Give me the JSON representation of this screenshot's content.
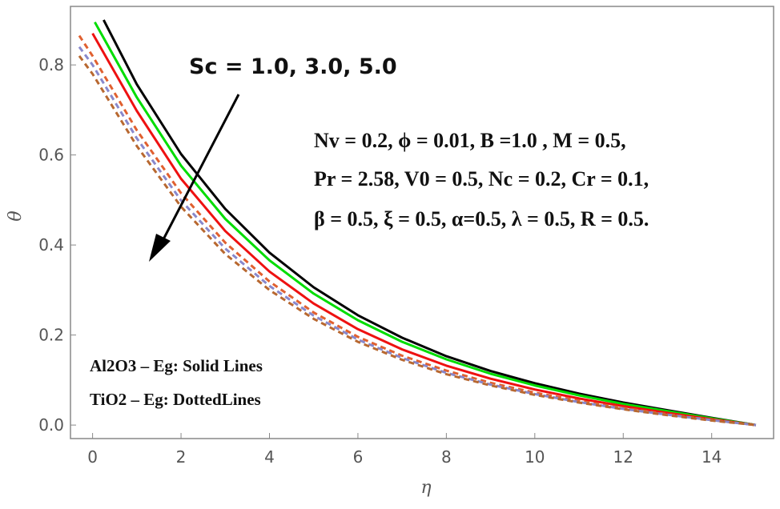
{
  "chart_data": {
    "type": "line",
    "xlabel": "η",
    "ylabel": "θ",
    "xlim": [
      -0.5,
      15.4
    ],
    "ylim": [
      -0.03,
      0.93
    ],
    "xticks": [
      "0",
      "2",
      "4",
      "6",
      "8",
      "10",
      "12",
      "14"
    ],
    "yticks": [
      "0.0",
      "0.2",
      "0.4",
      "0.6",
      "0.8"
    ],
    "grid": false,
    "annotations": {
      "sc": "Sc = 1.0, 3.0, 5.0",
      "params": [
        "Nv = 0.2, ϕ = 0.01, B =1.0 , M = 0.5,",
        "Pr = 2.58, V0 = 0.5, Nc = 0.2, Cr = 0.1,",
        "β = 0.5, ξ = 0.5,  α=0.5, λ = 0.5, R = 0.5."
      ],
      "legend_solid": "Al2O3 – Eg: Solid Lines",
      "legend_dotted": "TiO2 – Eg: DottedLines"
    },
    "series": [
      {
        "color": "#000000",
        "style": "solid",
        "x": [
          0.25,
          1,
          2,
          3,
          4,
          5,
          6,
          7,
          8,
          9,
          10,
          11,
          12,
          13,
          14,
          15
        ],
        "y": [
          0.9,
          0.757,
          0.602,
          0.48,
          0.383,
          0.306,
          0.244,
          0.194,
          0.153,
          0.12,
          0.093,
          0.07,
          0.05,
          0.033,
          0.016,
          0.0
        ]
      },
      {
        "color": "#00dd00",
        "style": "solid",
        "x": [
          0.05,
          1,
          2,
          3,
          4,
          5,
          6,
          7,
          8,
          9,
          10,
          11,
          12,
          13,
          14,
          15
        ],
        "y": [
          0.895,
          0.728,
          0.576,
          0.458,
          0.366,
          0.292,
          0.233,
          0.185,
          0.146,
          0.114,
          0.088,
          0.066,
          0.047,
          0.031,
          0.015,
          0.0
        ]
      },
      {
        "color": "#ee1111",
        "style": "solid",
        "x": [
          0.0,
          1,
          2,
          3,
          4,
          5,
          6,
          7,
          8,
          9,
          10,
          11,
          12,
          13,
          14,
          15
        ],
        "y": [
          0.87,
          0.698,
          0.547,
          0.431,
          0.341,
          0.27,
          0.213,
          0.168,
          0.132,
          0.103,
          0.079,
          0.059,
          0.042,
          0.027,
          0.013,
          0.0
        ]
      },
      {
        "color": "#e06030",
        "style": "dashed",
        "x": [
          -0.3,
          0,
          1,
          2,
          3,
          4,
          5,
          6,
          7,
          8,
          9,
          10,
          11,
          12,
          13,
          14,
          15
        ],
        "y": [
          0.865,
          0.82,
          0.655,
          0.515,
          0.405,
          0.319,
          0.25,
          0.196,
          0.154,
          0.121,
          0.094,
          0.072,
          0.054,
          0.038,
          0.024,
          0.011,
          0.0
        ]
      },
      {
        "color": "#8888cc",
        "style": "dashed",
        "x": [
          -0.3,
          0,
          1,
          2,
          3,
          4,
          5,
          6,
          7,
          8,
          9,
          10,
          11,
          12,
          13,
          14,
          15
        ],
        "y": [
          0.84,
          0.8,
          0.637,
          0.499,
          0.392,
          0.309,
          0.243,
          0.19,
          0.149,
          0.116,
          0.09,
          0.069,
          0.051,
          0.036,
          0.023,
          0.011,
          0.0
        ]
      },
      {
        "color": "#b86830",
        "style": "dashed",
        "x": [
          -0.3,
          0,
          1,
          2,
          3,
          4,
          5,
          6,
          7,
          8,
          9,
          10,
          11,
          12,
          13,
          14,
          15
        ],
        "y": [
          0.82,
          0.78,
          0.62,
          0.485,
          0.38,
          0.3,
          0.236,
          0.185,
          0.145,
          0.113,
          0.088,
          0.067,
          0.05,
          0.035,
          0.022,
          0.01,
          0.0
        ]
      }
    ]
  }
}
